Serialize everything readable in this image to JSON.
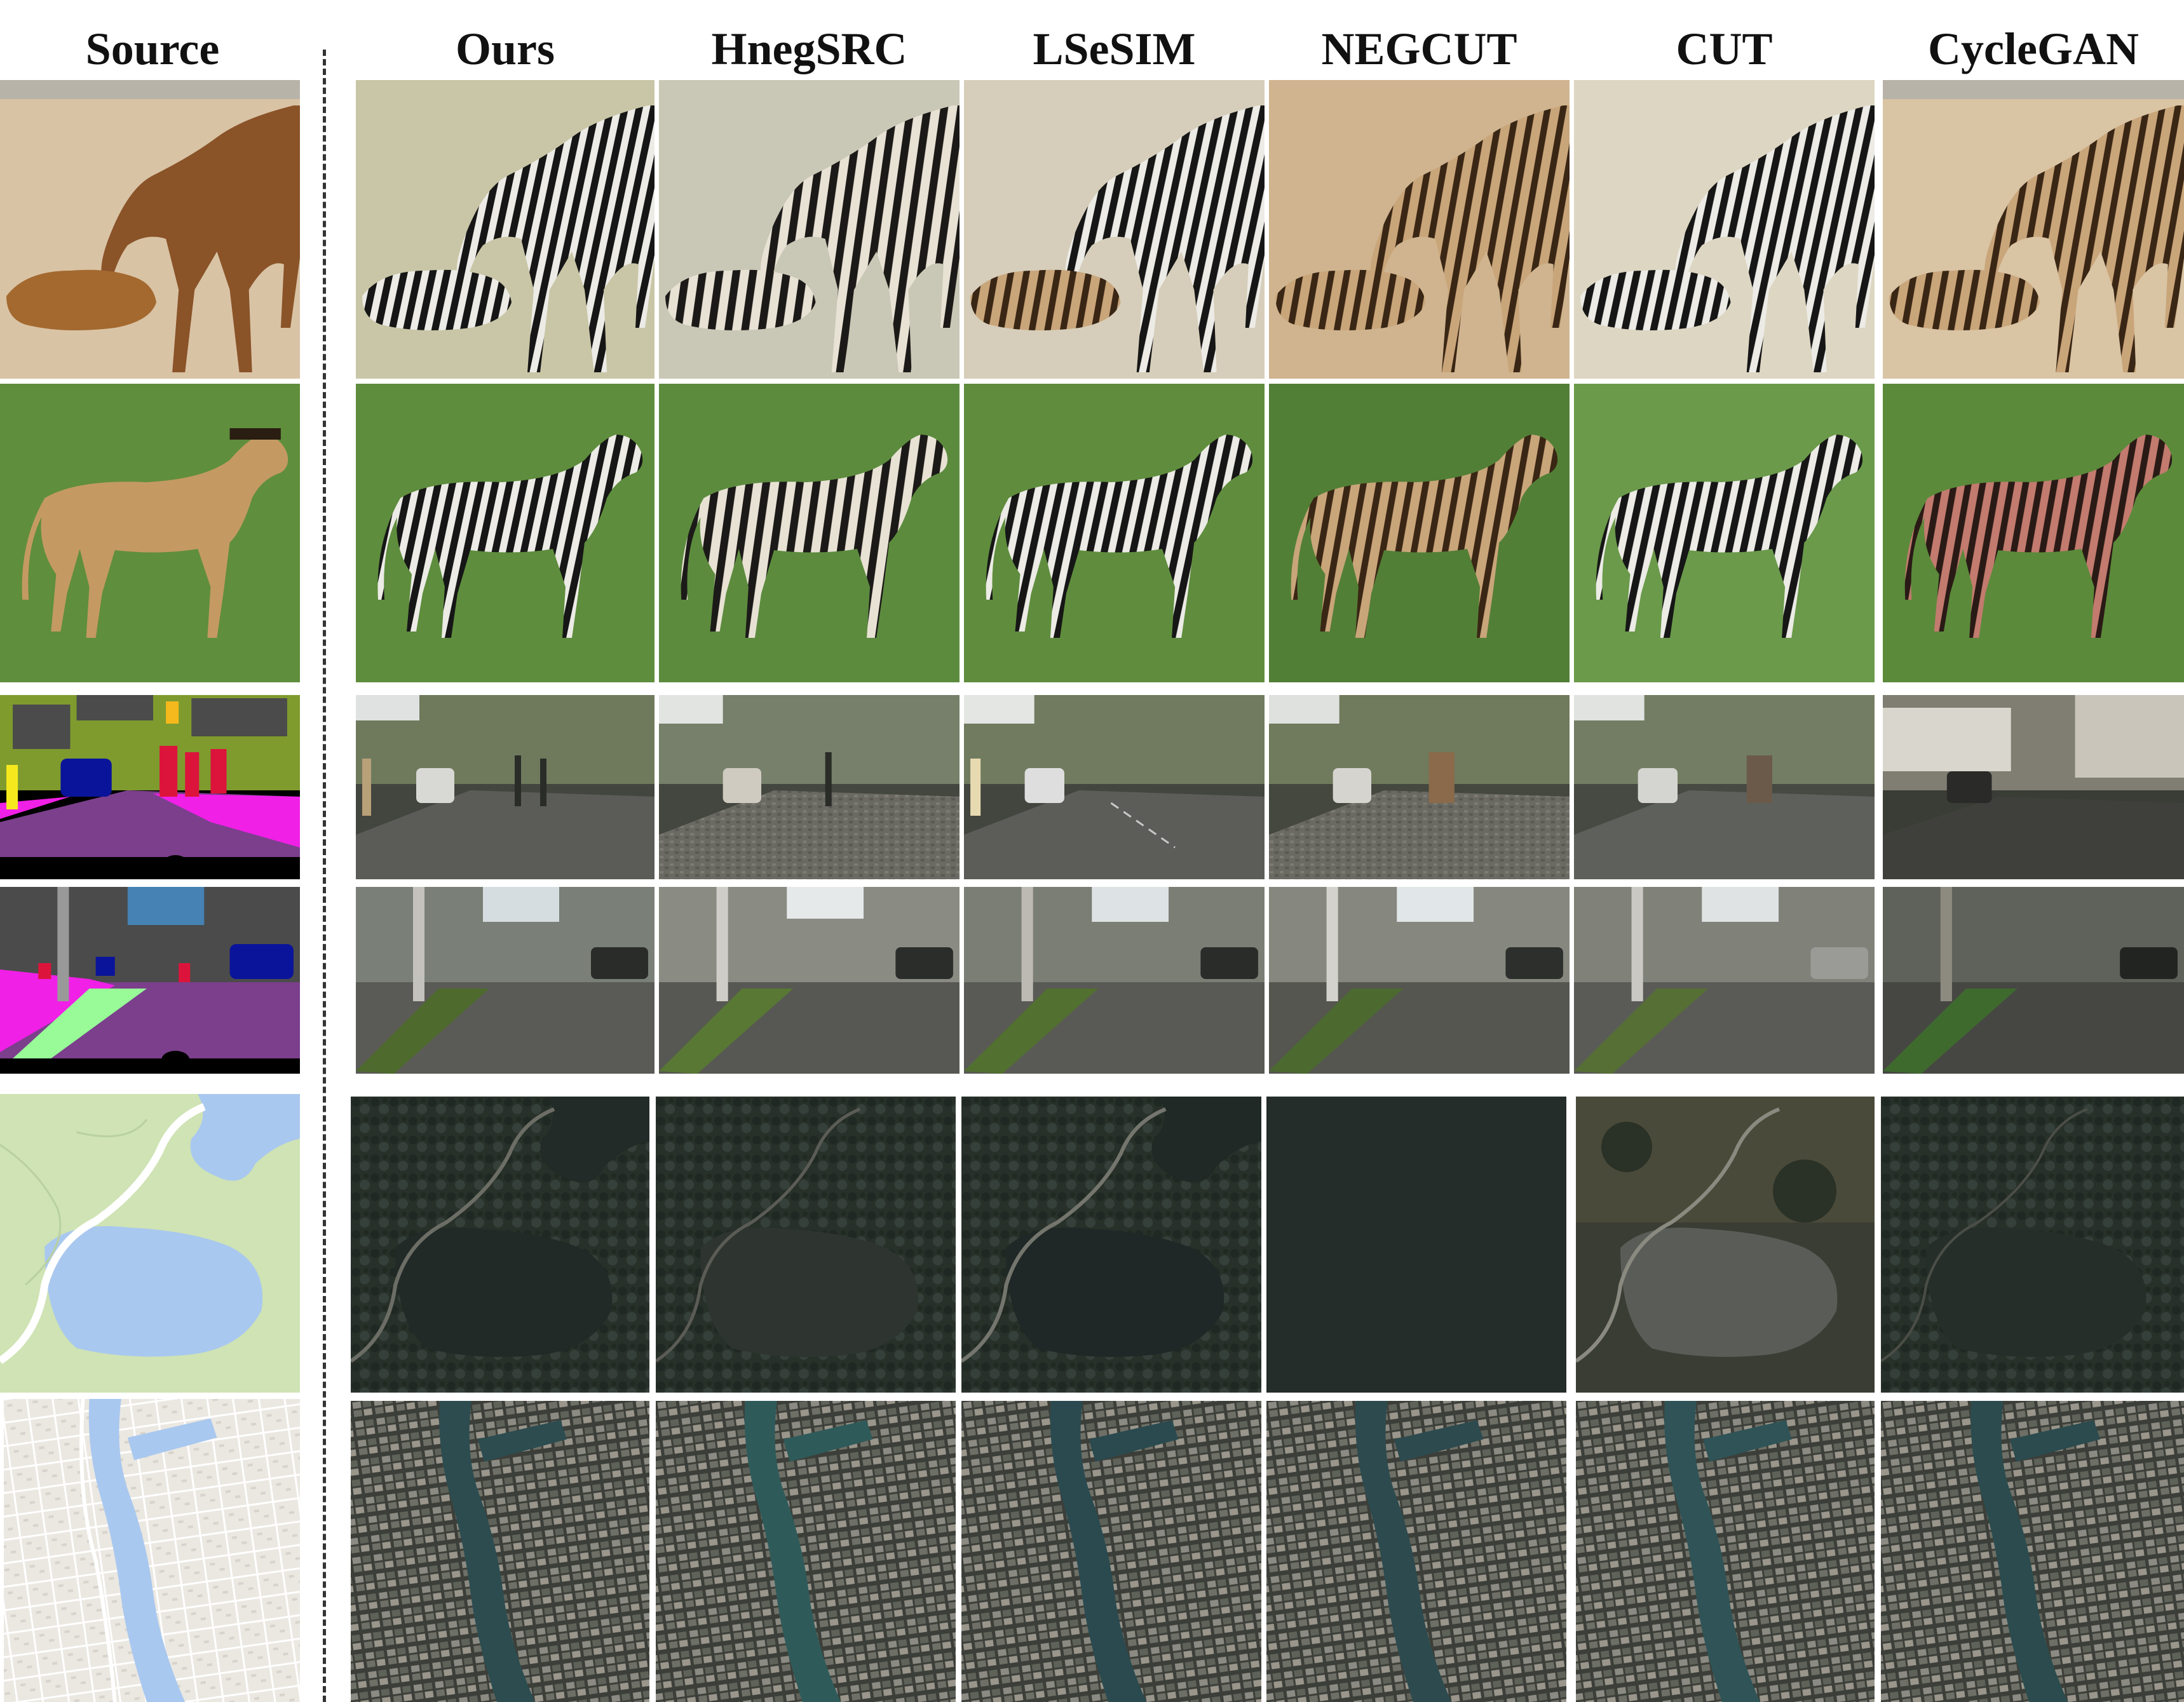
{
  "figure": {
    "columns": [
      "Source",
      "Ours",
      "HnegSRC",
      "LSeSIM",
      "NEGCUT",
      "CUT",
      "CycleGAN"
    ],
    "rows": [
      {
        "task": "horse-to-zebra",
        "scene": "horse nuzzling foal on sand"
      },
      {
        "task": "horse-to-zebra",
        "scene": "horse standing on grass"
      },
      {
        "task": "labels-to-photo",
        "scene": "street with car ahead"
      },
      {
        "task": "labels-to-photo",
        "scene": "street with median"
      },
      {
        "task": "map-to-aerial",
        "scene": "park with lake"
      },
      {
        "task": "map-to-aerial",
        "scene": "city blocks along river"
      }
    ]
  },
  "colors": {
    "sand": "#d9c3a5",
    "horse_brown": "#8a5328",
    "horse_tan": "#c49a62",
    "grass": "#5f8e3c",
    "zebra_black": "#1a1a1a",
    "zebra_white": "#ecebe6",
    "road": "#5b5c58",
    "seg_purple": "#7b3f8c",
    "seg_magenta": "#f020e6",
    "seg_olive": "#7f9b2e",
    "map_green": "#cfe3b4",
    "map_water": "#a9c8ef",
    "map_gray": "#ebe8e2",
    "aerial_dark": "#2a3128",
    "aerial_water": "#2c4c50"
  }
}
